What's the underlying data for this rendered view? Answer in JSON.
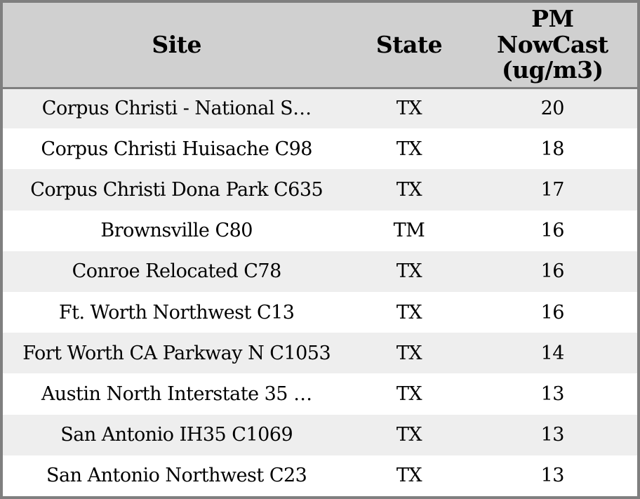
{
  "colors": {
    "frame_border": "#7f7f7f",
    "header_bg": "#d0d0d0",
    "row_odd_bg": "#eeeeee",
    "row_even_bg": "#ffffff",
    "text": "#000000"
  },
  "table": {
    "columns": {
      "site_label": "Site",
      "state_label": "State",
      "pm_label": "PM\nNowCast\n(ug/m3)"
    },
    "rows": [
      {
        "site": "Corpus Christi - National S…",
        "state": "TX",
        "pm_nowcast": "20"
      },
      {
        "site": "Corpus Christi Huisache C98",
        "state": "TX",
        "pm_nowcast": "18"
      },
      {
        "site": "Corpus Christi Dona Park C635",
        "state": "TX",
        "pm_nowcast": "17"
      },
      {
        "site": "Brownsville C80",
        "state": "TM",
        "pm_nowcast": "16"
      },
      {
        "site": "Conroe Relocated C78",
        "state": "TX",
        "pm_nowcast": "16"
      },
      {
        "site": "Ft. Worth Northwest C13",
        "state": "TX",
        "pm_nowcast": "16"
      },
      {
        "site": "Fort Worth CA Parkway N C1053",
        "state": "TX",
        "pm_nowcast": "14"
      },
      {
        "site": "Austin North Interstate 35 …",
        "state": "TX",
        "pm_nowcast": "13"
      },
      {
        "site": "San Antonio IH35 C1069",
        "state": "TX",
        "pm_nowcast": "13"
      },
      {
        "site": "San Antonio Northwest C23",
        "state": "TX",
        "pm_nowcast": "13"
      }
    ]
  }
}
